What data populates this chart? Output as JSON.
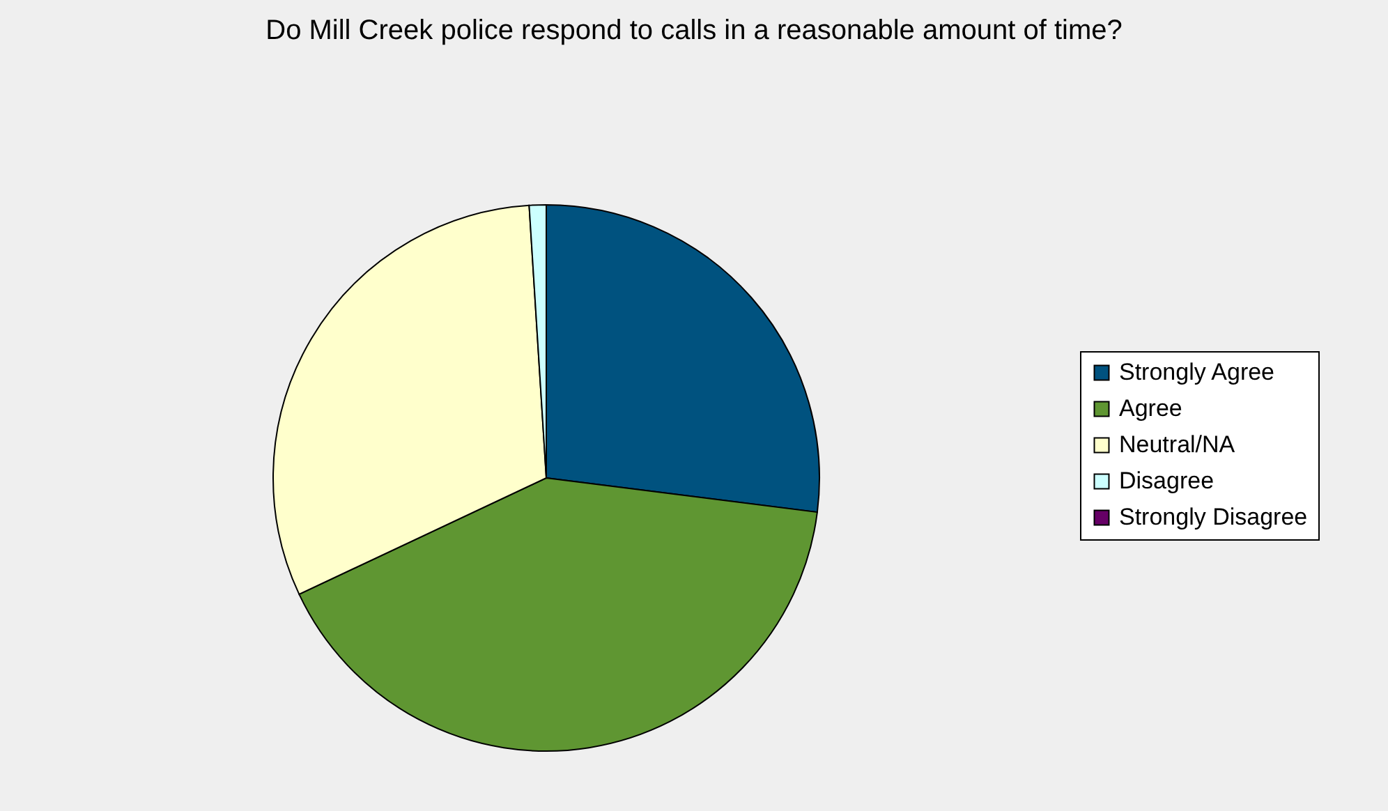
{
  "chart_data": {
    "type": "pie",
    "title": "Do Mill Creek police respond to calls in a reasonable amount of time?",
    "categories": [
      "Strongly Agree",
      "Agree",
      "Neutral/NA",
      "Disagree",
      "Strongly Disagree"
    ],
    "values": [
      27,
      41,
      31,
      1,
      0
    ],
    "colors": [
      "#00527f",
      "#5f9632",
      "#ffffcc",
      "#ccffff",
      "#660066"
    ],
    "legend": "right"
  }
}
